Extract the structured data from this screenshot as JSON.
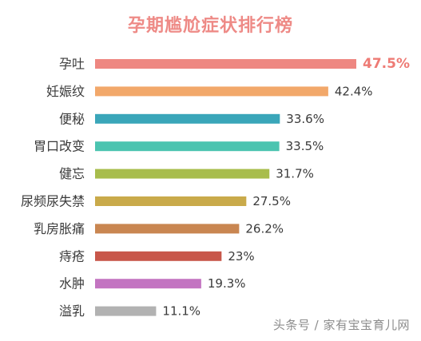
{
  "watermark": "头条号 / 家有宝宝育儿网",
  "colors": {
    "title": "#ee8a86",
    "highlight_label": "#ee7b75",
    "label": "#3a3a3a",
    "value": "#3a3a3a"
  },
  "chart_data": {
    "type": "bar",
    "orientation": "horizontal",
    "title": "孕期尴尬症状排行榜",
    "xlabel": "",
    "ylabel": "",
    "grid": false,
    "value_unit": "%",
    "xlim": [
      0,
      50
    ],
    "categories": [
      "孕吐",
      "妊娠纹",
      "便秘",
      "胃口改变",
      "健忘",
      "尿频尿失禁",
      "乳房胀痛",
      "痔疮",
      "水肿",
      "溢乳"
    ],
    "values": [
      47.5,
      42.4,
      33.6,
      33.5,
      31.7,
      27.5,
      26.2,
      23,
      19.3,
      11.1
    ],
    "value_labels": [
      "47.5%",
      "42.4%",
      "33.6%",
      "33.5%",
      "31.7%",
      "27.5%",
      "26.2%",
      "23%",
      "19.3%",
      "11.1%"
    ],
    "bar_colors": [
      "#ee8781",
      "#f2a86a",
      "#3aa6b9",
      "#4bc4b0",
      "#a8bd4c",
      "#c9aa4a",
      "#c98651",
      "#c8574a",
      "#c374c1",
      "#b2b2b2"
    ],
    "highlight_index": 0
  }
}
